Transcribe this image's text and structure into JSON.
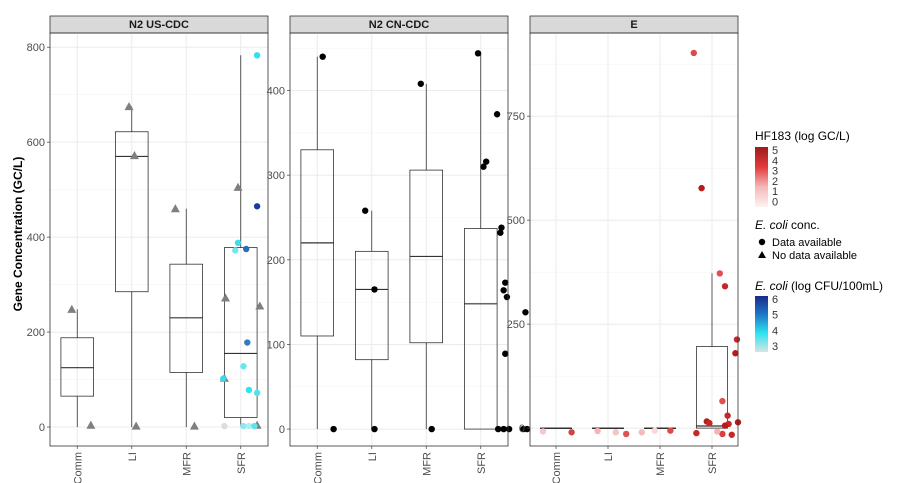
{
  "ylabel": "Gene Concentration (GC/L)",
  "categories": [
    "Comm",
    "LI",
    "MFR",
    "SFR"
  ],
  "colors": {
    "strip": "#d9d9d9",
    "grid": "#ebebeb",
    "box": "#333333",
    "black_point": "#000000",
    "triangle": "#7f7f7f"
  },
  "chart_data": [
    {
      "type": "box",
      "title": "N2 US-CDC",
      "ylim": [
        -40,
        830
      ],
      "yticks": [
        0,
        200,
        400,
        600,
        800
      ],
      "boxes": [
        {
          "category": "Comm",
          "q1": 65,
          "median": 125,
          "q3": 188,
          "whisker_low": 0,
          "whisker_high": 248
        },
        {
          "category": "LI",
          "q1": 285,
          "median": 570,
          "q3": 622,
          "whisker_low": 0,
          "whisker_high": 675
        },
        {
          "category": "MFR",
          "q1": 115,
          "median": 230,
          "q3": 343,
          "whisker_low": 0,
          "whisker_high": 460
        },
        {
          "category": "SFR",
          "q1": 20,
          "median": 155,
          "q3": 378,
          "whisker_low": 0,
          "whisker_high": 783
        }
      ],
      "points": [
        {
          "category": "Comm",
          "dx": 0.25,
          "y": 4,
          "shape": "triangle",
          "color": "#7f7f7f"
        },
        {
          "category": "Comm",
          "dx": -0.1,
          "y": 248,
          "shape": "triangle",
          "color": "#7f7f7f"
        },
        {
          "category": "LI",
          "dx": -0.05,
          "y": 675,
          "shape": "triangle",
          "color": "#7f7f7f"
        },
        {
          "category": "LI",
          "dx": 0.05,
          "y": 572,
          "shape": "triangle",
          "color": "#7f7f7f"
        },
        {
          "category": "LI",
          "dx": 0.08,
          "y": 2,
          "shape": "triangle",
          "color": "#7f7f7f"
        },
        {
          "category": "MFR",
          "dx": -0.2,
          "y": 460,
          "shape": "triangle",
          "color": "#7f7f7f"
        },
        {
          "category": "MFR",
          "dx": 0.15,
          "y": 2,
          "shape": "triangle",
          "color": "#7f7f7f"
        },
        {
          "category": "SFR",
          "dx": -0.05,
          "y": 505,
          "shape": "triangle",
          "color": "#7f7f7f"
        },
        {
          "category": "SFR",
          "dx": -0.28,
          "y": 272,
          "shape": "triangle",
          "color": "#7f7f7f"
        },
        {
          "category": "SFR",
          "dx": 0.35,
          "y": 255,
          "shape": "triangle",
          "color": "#7f7f7f"
        },
        {
          "category": "SFR",
          "dx": -0.3,
          "y": 103,
          "shape": "triangle",
          "color": "#7f7f7f"
        },
        {
          "category": "SFR",
          "dx": 0.3,
          "y": 4,
          "shape": "triangle",
          "color": "#7f7f7f"
        },
        {
          "category": "SFR",
          "dx": 0.3,
          "y": 783,
          "shape": "circle",
          "color": "#2ee0f0"
        },
        {
          "category": "SFR",
          "dx": 0.3,
          "y": 465,
          "shape": "circle",
          "color": "#1f3a9e"
        },
        {
          "category": "SFR",
          "dx": -0.05,
          "y": 388,
          "shape": "circle",
          "color": "#41dcec"
        },
        {
          "category": "SFR",
          "dx": -0.1,
          "y": 372,
          "shape": "circle",
          "color": "#6fe7ef"
        },
        {
          "category": "SFR",
          "dx": 0.1,
          "y": 375,
          "shape": "circle",
          "color": "#2d6bb8"
        },
        {
          "category": "SFR",
          "dx": 0.12,
          "y": 178,
          "shape": "circle",
          "color": "#2f7ec4"
        },
        {
          "category": "SFR",
          "dx": 0.05,
          "y": 128,
          "shape": "circle",
          "color": "#5eeaf2"
        },
        {
          "category": "SFR",
          "dx": -0.32,
          "y": 102,
          "shape": "circle",
          "color": "#3ad9ea"
        },
        {
          "category": "SFR",
          "dx": 0.15,
          "y": 78,
          "shape": "circle",
          "color": "#2ee4f0"
        },
        {
          "category": "SFR",
          "dx": 0.3,
          "y": 72,
          "shape": "circle",
          "color": "#4fe3ef"
        },
        {
          "category": "SFR",
          "dx": -0.3,
          "y": 2,
          "shape": "circle",
          "color": "#d9dede"
        },
        {
          "category": "SFR",
          "dx": 0.05,
          "y": 2,
          "shape": "circle",
          "color": "#8ae9f2"
        },
        {
          "category": "SFR",
          "dx": 0.15,
          "y": 2,
          "shape": "circle",
          "color": "#aeeef2"
        },
        {
          "category": "SFR",
          "dx": 0.25,
          "y": 2,
          "shape": "circle",
          "color": "#5ee4f0"
        }
      ]
    },
    {
      "type": "box",
      "title": "N2 CN-CDC",
      "ylim": [
        -20,
        468
      ],
      "yticks": [
        0,
        100,
        200,
        300,
        400
      ],
      "boxes": [
        {
          "category": "Comm",
          "q1": 110,
          "median": 220,
          "q3": 330,
          "whisker_low": 0,
          "whisker_high": 440
        },
        {
          "category": "LI",
          "q1": 82,
          "median": 165,
          "q3": 210,
          "whisker_low": 0,
          "whisker_high": 258
        },
        {
          "category": "MFR",
          "q1": 102,
          "median": 204,
          "q3": 306,
          "whisker_low": 0,
          "whisker_high": 408
        },
        {
          "category": "SFR",
          "q1": 0,
          "median": 148,
          "q3": 237,
          "whisker_low": 0,
          "whisker_high": 444
        }
      ],
      "points": [
        {
          "category": "Comm",
          "dx": 0.1,
          "y": 440,
          "shape": "circle",
          "color": "#000000"
        },
        {
          "category": "Comm",
          "dx": 0.3,
          "y": 0,
          "shape": "circle",
          "color": "#000000"
        },
        {
          "category": "LI",
          "dx": -0.12,
          "y": 258,
          "shape": "circle",
          "color": "#000000"
        },
        {
          "category": "LI",
          "dx": 0.05,
          "y": 165,
          "shape": "circle",
          "color": "#000000"
        },
        {
          "category": "LI",
          "dx": 0.05,
          "y": 0,
          "shape": "circle",
          "color": "#000000"
        },
        {
          "category": "MFR",
          "dx": -0.1,
          "y": 408,
          "shape": "circle",
          "color": "#000000"
        },
        {
          "category": "MFR",
          "dx": 0.1,
          "y": 0,
          "shape": "circle",
          "color": "#000000"
        },
        {
          "category": "SFR",
          "dx": -0.05,
          "y": 444,
          "shape": "circle",
          "color": "#000000"
        },
        {
          "category": "SFR",
          "dx": 0.3,
          "y": 372,
          "shape": "circle",
          "color": "#000000"
        },
        {
          "category": "SFR",
          "dx": 0.1,
          "y": 316,
          "shape": "circle",
          "color": "#000000"
        },
        {
          "category": "SFR",
          "dx": 0.05,
          "y": 310,
          "shape": "circle",
          "color": "#000000"
        },
        {
          "category": "SFR",
          "dx": 0.38,
          "y": 238,
          "shape": "circle",
          "color": "#000000"
        },
        {
          "category": "SFR",
          "dx": 0.36,
          "y": 232,
          "shape": "circle",
          "color": "#000000"
        },
        {
          "category": "SFR",
          "dx": 0.45,
          "y": 173,
          "shape": "circle",
          "color": "#000000"
        },
        {
          "category": "SFR",
          "dx": 0.42,
          "y": 164,
          "shape": "circle",
          "color": "#000000"
        },
        {
          "category": "SFR",
          "dx": 0.48,
          "y": 156,
          "shape": "circle",
          "color": "#000000"
        },
        {
          "category": "SFR",
          "dx": 0.82,
          "y": 138,
          "shape": "circle",
          "color": "#000000"
        },
        {
          "category": "SFR",
          "dx": 0.45,
          "y": 89,
          "shape": "circle",
          "color": "#000000"
        },
        {
          "category": "SFR",
          "dx": 0.32,
          "y": 0,
          "shape": "circle",
          "color": "#000000"
        },
        {
          "category": "SFR",
          "dx": 0.42,
          "y": 0,
          "shape": "circle",
          "color": "#000000"
        },
        {
          "category": "SFR",
          "dx": 0.52,
          "y": 0,
          "shape": "circle",
          "color": "#000000"
        },
        {
          "category": "SFR",
          "dx": 0.78,
          "y": 0,
          "shape": "circle",
          "color": "#000000"
        },
        {
          "category": "SFR",
          "dx": 0.85,
          "y": 0,
          "shape": "circle",
          "color": "#000000"
        }
      ]
    },
    {
      "type": "box",
      "title": "E",
      "ylim": [
        -43,
        950
      ],
      "yticks": [
        0,
        250,
        500,
        750
      ],
      "boxes": [
        {
          "category": "Comm",
          "q1": 0,
          "median": 0,
          "q3": 0,
          "whisker_low": 0,
          "whisker_high": 0
        },
        {
          "category": "LI",
          "q1": 0,
          "median": 0,
          "q3": 0,
          "whisker_low": 0,
          "whisker_high": 0
        },
        {
          "category": "MFR",
          "q1": 0,
          "median": 0,
          "q3": 0,
          "whisker_low": 0,
          "whisker_high": 0
        },
        {
          "category": "SFR",
          "q1": 0,
          "median": 5,
          "q3": 196,
          "whisker_low": 0,
          "whisker_high": 372
        }
      ],
      "points": [
        {
          "category": "Comm",
          "dx": -0.25,
          "y": -8,
          "shape": "circle",
          "color": "#f7c8c8"
        },
        {
          "category": "Comm",
          "dx": 0.3,
          "y": -10,
          "shape": "circle",
          "color": "#d94040"
        },
        {
          "category": "LI",
          "dx": -0.2,
          "y": -7,
          "shape": "circle",
          "color": "#f5b5b5"
        },
        {
          "category": "LI",
          "dx": 0.35,
          "y": -14,
          "shape": "circle",
          "color": "#e05050"
        },
        {
          "category": "LI",
          "dx": 0.15,
          "y": -10,
          "shape": "circle",
          "color": "#f2c4c4"
        },
        {
          "category": "MFR",
          "dx": -0.35,
          "y": -10,
          "shape": "circle",
          "color": "#f3bcbc"
        },
        {
          "category": "MFR",
          "dx": -0.1,
          "y": -6,
          "shape": "circle",
          "color": "#f8d8d8"
        },
        {
          "category": "MFR",
          "dx": 0.2,
          "y": -6,
          "shape": "circle",
          "color": "#e04848"
        },
        {
          "category": "SFR",
          "dx": -0.35,
          "y": 902,
          "shape": "circle",
          "color": "#e04848"
        },
        {
          "category": "SFR",
          "dx": -0.2,
          "y": 577,
          "shape": "circle",
          "color": "#b71c1c"
        },
        {
          "category": "SFR",
          "dx": 0.15,
          "y": 372,
          "shape": "circle",
          "color": "#e05050"
        },
        {
          "category": "SFR",
          "dx": 0.25,
          "y": 341,
          "shape": "circle",
          "color": "#c62828"
        },
        {
          "category": "SFR",
          "dx": 0.48,
          "y": 213,
          "shape": "circle",
          "color": "#c62828"
        },
        {
          "category": "SFR",
          "dx": 0.45,
          "y": 180,
          "shape": "circle",
          "color": "#b71c1c"
        },
        {
          "category": "SFR",
          "dx": 0.2,
          "y": 65,
          "shape": "circle",
          "color": "#e05050"
        },
        {
          "category": "SFR",
          "dx": 0.3,
          "y": 30,
          "shape": "circle",
          "color": "#c62828"
        },
        {
          "category": "SFR",
          "dx": -0.1,
          "y": 16,
          "shape": "circle",
          "color": "#b71c1c"
        },
        {
          "category": "SFR",
          "dx": -0.05,
          "y": 12,
          "shape": "circle",
          "color": "#c62828"
        },
        {
          "category": "SFR",
          "dx": 0.5,
          "y": 14,
          "shape": "circle",
          "color": "#b71c1c"
        },
        {
          "category": "SFR",
          "dx": 0.32,
          "y": 10,
          "shape": "circle",
          "color": "#c62828"
        },
        {
          "category": "SFR",
          "dx": 0.25,
          "y": 6,
          "shape": "circle",
          "color": "#b71c1c"
        },
        {
          "category": "SFR",
          "dx": -0.3,
          "y": -12,
          "shape": "circle",
          "color": "#c62828"
        },
        {
          "category": "SFR",
          "dx": 0.2,
          "y": -14,
          "shape": "circle",
          "color": "#d94040"
        },
        {
          "category": "SFR",
          "dx": 0.38,
          "y": -16,
          "shape": "circle",
          "color": "#c62828"
        },
        {
          "category": "SFR",
          "dx": 0.1,
          "y": -8,
          "shape": "circle",
          "color": "#f5b5b5"
        }
      ]
    }
  ],
  "legend": {
    "hf183": {
      "title": "HF183 (log GC/L)",
      "ticks": [
        "5",
        "4",
        "3",
        "2",
        "1",
        "0"
      ],
      "gradient": [
        "#9e1b1b",
        "#e23b3b",
        "#f5b8b8",
        "#fdf2f2"
      ]
    },
    "shape": {
      "title_italic": "E. coli",
      "title_rest": " conc.",
      "items": [
        {
          "label": "Data available",
          "shape": "circle"
        },
        {
          "label": "No data available",
          "shape": "triangle"
        }
      ]
    },
    "ecoli": {
      "title_italic": "E. coli",
      "title_rest": " (log CFU/100mL)",
      "ticks": [
        "6",
        "5",
        "4",
        "3"
      ],
      "gradient": [
        "#1a2a8a",
        "#1f78c8",
        "#2ee4f0",
        "#d6e4e4"
      ]
    }
  }
}
